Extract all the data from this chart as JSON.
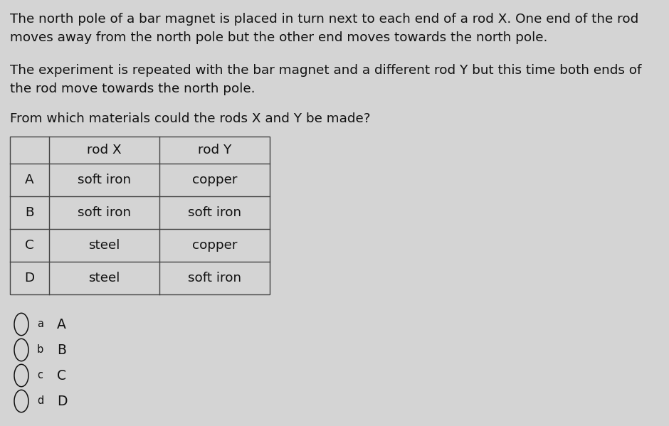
{
  "background_color": "#d4d4d4",
  "paragraph1": "The north pole of a bar magnet is placed in turn next to each end of a rod X. One end of the rod\nmoves away from the north pole but the other end moves towards the north pole.",
  "paragraph2": "The experiment is repeated with the bar magnet and a different rod Y but this time both ends of\nthe rod move towards the north pole.",
  "paragraph3": "From which materials could the rods X and Y be made?",
  "table_headers": [
    "",
    "rod X",
    "rod Y"
  ],
  "table_rows": [
    [
      "A",
      "soft iron",
      "copper"
    ],
    [
      "B",
      "soft iron",
      "soft iron"
    ],
    [
      "C",
      "steel",
      "copper"
    ],
    [
      "D",
      "steel",
      "soft iron"
    ]
  ],
  "options": [
    [
      "a",
      "A"
    ],
    [
      "b",
      "B"
    ],
    [
      "c",
      "C"
    ],
    [
      "d",
      "D"
    ]
  ],
  "text_color": "#111111",
  "table_border_color": "#444444",
  "font_size_body": 13.2,
  "font_size_table": 13.2,
  "font_size_options_small": 10.5,
  "font_size_options_large": 13.5
}
